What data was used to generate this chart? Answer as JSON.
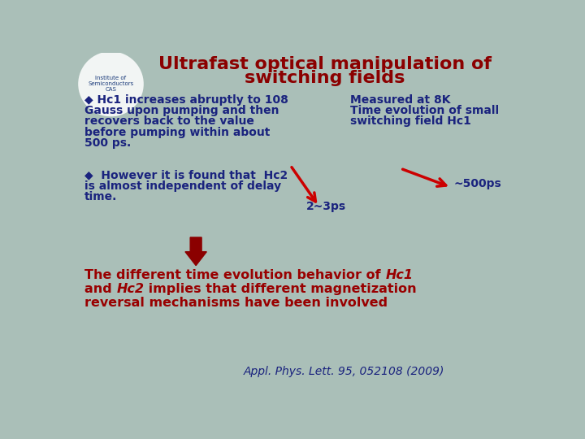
{
  "title_line1": "Ultrafast optical manipulation of",
  "title_line2": "switching fields",
  "title_color": "#8B0000",
  "bg_color": "#AABFB8",
  "bullet1_line1": "◆ Hc1 increases abruptly to 108",
  "bullet1_line2": "Gauss upon pumping and then",
  "bullet1_line3": "recovers back to the value",
  "bullet1_line4": "before pumping within about",
  "bullet1_line5": "500 ps.",
  "measured_line1": "Measured at 8K",
  "measured_line2": "Time evolution of small",
  "measured_line3": "switching field Hc1",
  "label_500ps": "~500ps",
  "label_23ps": "2~3ps",
  "bullet2_line1": "◆  However it is found that  Hc2",
  "bullet2_line2": "is almost independent of delay",
  "bullet2_line3": "time.",
  "bot_pre1": "The different time evolution behavior of ",
  "bot_it1": "Hc1",
  "bot_pre2": "and ",
  "bot_it2": "Hc2",
  "bot_suf2": " implies that different magnetization",
  "bot_line3": "reversal mechanisms have been involved",
  "citation": "Appl. Phys. Lett. 95, 052108 (2009)",
  "text_dark": "#1a237e",
  "text_red": "#990000",
  "arrow_red": "#cc0000",
  "big_arrow_red": "#8B0000"
}
